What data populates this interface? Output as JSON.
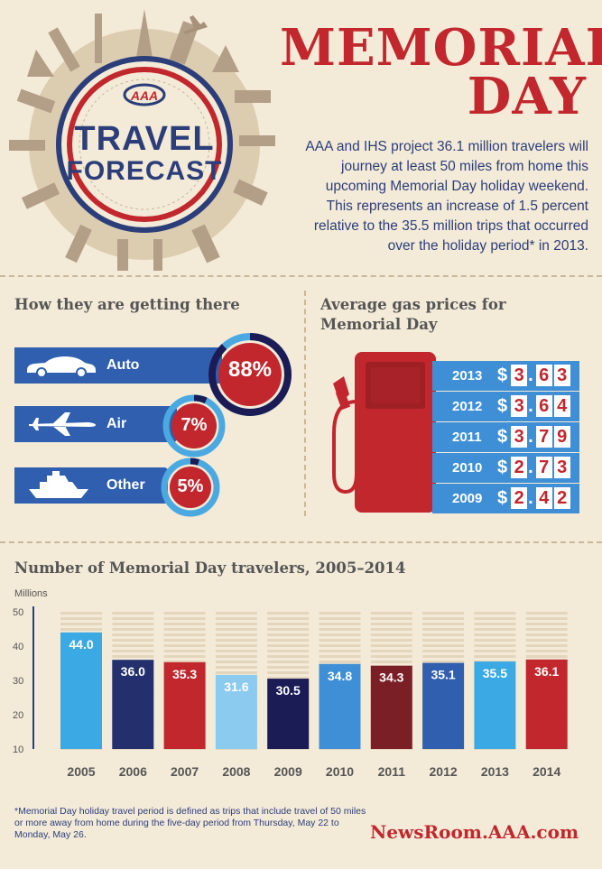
{
  "emblem": {
    "brand": "AAA",
    "line1": "TRAVEL",
    "line2": "FORECAST"
  },
  "headline": {
    "line1": "MEMORIAL",
    "line2": "DAY"
  },
  "intro": "AAA and IHS project 36.1 million travelers will journey at least 50 miles from home this upcoming Memorial Day holiday weekend. This represents an increase of 1.5 percent relative to the 35.5 million trips that occurred over the holiday period* in 2013.",
  "modes": {
    "title": "How they are getting there",
    "items": [
      {
        "label": "Auto",
        "percent_text": "88%",
        "percent": 88,
        "icon": "car-icon"
      },
      {
        "label": "Air",
        "percent_text": "7%",
        "percent": 7,
        "icon": "airplane-icon"
      },
      {
        "label": "Other",
        "percent_text": "5%",
        "percent": 5,
        "icon": "cruise-ship-icon"
      }
    ]
  },
  "gas": {
    "title_line1": "Average gas prices for",
    "title_line2": "Memorial Day",
    "rows": [
      {
        "year": "2013",
        "price": "3.63"
      },
      {
        "year": "2012",
        "price": "3.64"
      },
      {
        "year": "2011",
        "price": "3.79"
      },
      {
        "year": "2010",
        "price": "2.73"
      },
      {
        "year": "2009",
        "price": "2.42"
      }
    ]
  },
  "chart_data": {
    "type": "bar",
    "title": "Number of Memorial Day travelers, 2005–2014",
    "ylabel": "Millions",
    "ylim": [
      10,
      50
    ],
    "yticks": [
      10,
      20,
      30,
      40,
      50
    ],
    "categories": [
      "2005",
      "2006",
      "2007",
      "2008",
      "2009",
      "2010",
      "2011",
      "2012",
      "2013",
      "2014"
    ],
    "values": [
      44.0,
      36.0,
      35.3,
      31.6,
      30.5,
      34.8,
      34.3,
      35.1,
      35.5,
      36.1
    ],
    "value_labels": [
      "44.0",
      "36.0",
      "35.3",
      "31.6",
      "30.5",
      "34.8",
      "34.3",
      "35.1",
      "35.5",
      "36.1"
    ],
    "bar_colors": [
      "#3ba9e4",
      "#24306e",
      "#c1272d",
      "#8ccbf0",
      "#1b1b55",
      "#3f8fd6",
      "#7a1f25",
      "#2f5fae",
      "#3ba9e4",
      "#c1272d"
    ],
    "grid": false
  },
  "colors": {
    "red": "#c1272d",
    "navy": "#2c3e7a",
    "blue": "#2f5fae",
    "light_blue": "#3ba9e4",
    "background": "#f3ead8"
  },
  "footnote": "*Memorial Day holiday travel period is defined as trips that include travel of 50 miles or more away from home during the five-day period from Thursday, May 22 to Monday, May 26.",
  "url": "NewsRoom.AAA.com"
}
